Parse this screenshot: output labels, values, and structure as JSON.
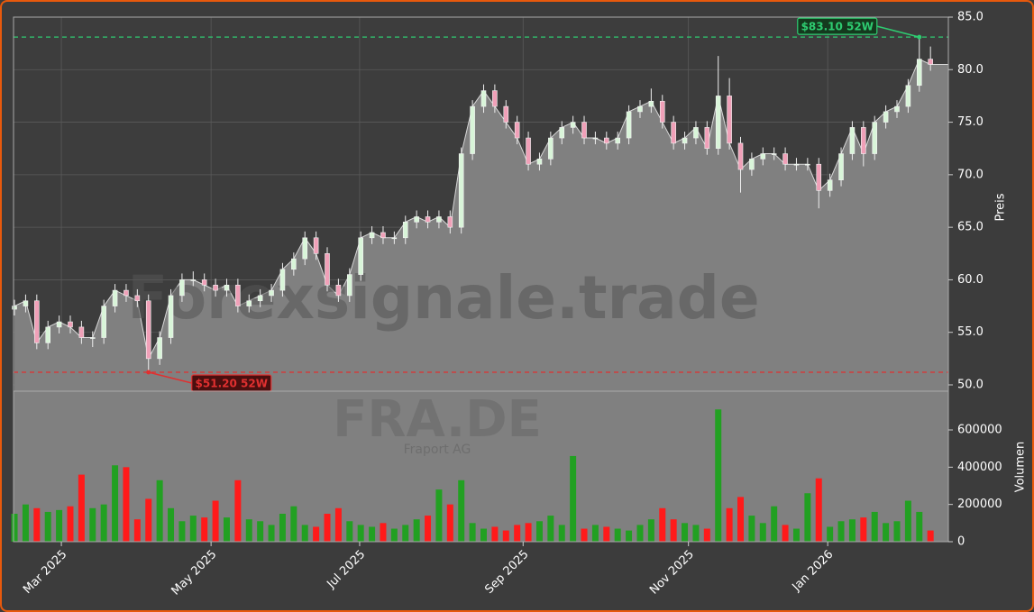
{
  "chart_data": {
    "type": "candlestick",
    "watermark": "Forexsignale.trade",
    "ticker": "FRA.DE",
    "company": "Fraport AG",
    "ylabel": "Preis",
    "y2label": "Volumen",
    "xlim": [
      -0.25,
      250.8
    ],
    "xticks": [
      {
        "value": 12.6,
        "label": "Mar 2025"
      },
      {
        "value": 52.8,
        "label": "May 2025"
      },
      {
        "value": 92.7,
        "label": "Jul 2025"
      },
      {
        "value": 136.6,
        "label": "Sep 2025"
      },
      {
        "value": 181,
        "label": "Nov 2025"
      },
      {
        "value": 218.4,
        "label": "Jan 2026"
      }
    ],
    "ylim": [
      49.4,
      85
    ],
    "yticks": [
      {
        "value": 50,
        "label": "50.0"
      },
      {
        "value": 55,
        "label": "55.0"
      },
      {
        "value": 60,
        "label": "60.0"
      },
      {
        "value": 65,
        "label": "65.0"
      },
      {
        "value": 70,
        "label": "70.0"
      },
      {
        "value": 75,
        "label": "75.0"
      },
      {
        "value": 80,
        "label": "80.0"
      },
      {
        "value": 85,
        "label": "85.0"
      }
    ],
    "y2lim": [
      0,
      808000
    ],
    "y2ticks": [
      0,
      200000,
      400000,
      600000
    ],
    "grid": true,
    "up_color": "#22a022",
    "down_color": "#ff1a1a",
    "area_color": "#808080",
    "annotations": [
      {
        "value": 83.1,
        "label": "$83.10 52W",
        "color": "#2ecc71"
      },
      {
        "value": 51.2,
        "label": "$51.20 52W",
        "color": "#e03030"
      }
    ],
    "x": [
      0,
      3,
      6,
      9,
      12,
      15,
      18,
      21,
      24,
      27,
      30,
      33,
      36,
      39,
      42,
      45,
      48,
      51,
      54,
      57,
      60,
      63,
      66,
      69,
      72,
      75,
      78,
      81,
      84,
      87,
      90,
      93,
      96,
      99,
      102,
      105,
      108,
      111,
      114,
      117,
      120,
      123,
      126,
      129,
      132,
      135,
      138,
      141,
      144,
      147,
      150,
      153,
      156,
      159,
      162,
      165,
      168,
      171,
      174,
      177,
      180,
      183,
      186,
      189,
      192,
      195,
      198,
      201,
      204,
      207,
      210,
      213,
      216,
      219,
      222,
      225,
      228,
      231,
      234,
      237,
      240,
      243,
      246
    ],
    "open": [
      57.2,
      57.5,
      58,
      54,
      55.5,
      56,
      55.5,
      54.5,
      54.5,
      57.5,
      59,
      58.5,
      58,
      52.5,
      54.5,
      58.5,
      60,
      60,
      59.5,
      59,
      59.5,
      57.5,
      58,
      58.5,
      59,
      61,
      62,
      64,
      62.5,
      59.5,
      58.5,
      60.5,
      64,
      64.5,
      64,
      64,
      65.5,
      66,
      65.5,
      66,
      65,
      72,
      76.5,
      78,
      76.5,
      75,
      73.5,
      71,
      71.5,
      73.5,
      74.5,
      75,
      73.5,
      73.5,
      73,
      73.5,
      76,
      76.5,
      77,
      75,
      73,
      73.5,
      74.5,
      72.5,
      77.5,
      73,
      70.5,
      71.5,
      72,
      72,
      71,
      71,
      71,
      68.5,
      69.5,
      72,
      74.5,
      72,
      75,
      76,
      76.5,
      78.5,
      81
    ],
    "high": [
      58.1,
      58.6,
      58.6,
      56.1,
      56.6,
      56.6,
      56.1,
      55.1,
      58.1,
      59.6,
      59.6,
      59.1,
      58.6,
      55.1,
      59.1,
      60.6,
      60.8,
      60.6,
      60.1,
      60.1,
      60.1,
      58.6,
      59.1,
      59.6,
      61.6,
      62.6,
      64.6,
      64.6,
      63.1,
      60.1,
      61.1,
      64.6,
      65.1,
      65.1,
      64.6,
      66.1,
      66.6,
      66.6,
      66.6,
      66.6,
      72.6,
      77.1,
      78.6,
      78.6,
      77.1,
      75.6,
      74.1,
      72.1,
      74.1,
      75.1,
      75.6,
      75.6,
      74.1,
      74.1,
      74.1,
      76.6,
      77.1,
      78.2,
      77.6,
      75.6,
      74.1,
      75.1,
      75.1,
      81.3,
      79.2,
      73.6,
      72.1,
      72.6,
      72.6,
      72.6,
      71.6,
      71.6,
      71.6,
      70.1,
      72.6,
      75.1,
      75.1,
      75.6,
      76.6,
      77.1,
      79.1,
      83.1,
      82.2
    ],
    "low": [
      56.6,
      56.9,
      53.4,
      53.4,
      54.9,
      54.9,
      53.9,
      53.6,
      53.9,
      56.9,
      57.9,
      57.4,
      51.2,
      51.9,
      53.9,
      57.9,
      59.4,
      58.9,
      58.4,
      58.4,
      56.9,
      56.9,
      57.4,
      57.9,
      58.4,
      60.4,
      61.4,
      61.9,
      58.9,
      57.9,
      57.9,
      59.9,
      63.4,
      63.4,
      63.4,
      63.4,
      64.9,
      64.9,
      64.9,
      64.4,
      64.4,
      71.4,
      75.9,
      75.9,
      74.4,
      72.9,
      70.4,
      70.4,
      70.9,
      72.9,
      73.9,
      72.9,
      72.9,
      72.4,
      72.4,
      72.9,
      75.4,
      75.9,
      74.4,
      72.4,
      72.4,
      72.9,
      71.9,
      71.9,
      72.4,
      68.3,
      69.9,
      70.9,
      71.4,
      70.4,
      70.4,
      70.4,
      66.8,
      67.9,
      68.9,
      71.4,
      70.8,
      71.4,
      74.4,
      75.4,
      75.9,
      77.9,
      79.9
    ],
    "close": [
      57.5,
      58,
      54,
      55.5,
      56,
      55.5,
      54.5,
      54.5,
      57.5,
      59,
      58.5,
      58,
      52.5,
      54.5,
      58.5,
      60,
      60,
      59.5,
      59,
      59.5,
      57.5,
      58,
      58.5,
      59,
      61,
      62,
      64,
      62.5,
      59.5,
      58.5,
      60.5,
      64,
      64.5,
      64,
      64,
      65.5,
      66,
      65.5,
      66,
      65,
      72,
      76.5,
      78,
      76.5,
      75,
      73.5,
      71,
      71.5,
      73.5,
      74.5,
      75,
      73.5,
      73.5,
      73,
      73.5,
      76,
      76.5,
      77,
      75,
      73,
      73.5,
      74.5,
      72.5,
      77.5,
      73,
      70.5,
      71.5,
      72,
      72,
      71,
      71,
      71,
      68.5,
      69.5,
      72,
      74.5,
      72,
      75,
      76,
      76.5,
      78.5,
      81,
      80.5
    ],
    "volume": [
      150000,
      200000,
      180000,
      160000,
      170000,
      190000,
      360000,
      180000,
      200000,
      410000,
      400000,
      120000,
      230000,
      330000,
      180000,
      110000,
      140000,
      130000,
      220000,
      130000,
      330000,
      120000,
      110000,
      90000,
      150000,
      190000,
      90000,
      80000,
      150000,
      180000,
      110000,
      90000,
      80000,
      100000,
      70000,
      90000,
      120000,
      140000,
      280000,
      200000,
      330000,
      100000,
      70000,
      80000,
      60000,
      90000,
      100000,
      110000,
      140000,
      90000,
      460000,
      70000,
      90000,
      80000,
      70000,
      60000,
      90000,
      120000,
      180000,
      120000,
      100000,
      90000,
      70000,
      710000,
      180000,
      240000,
      140000,
      100000,
      190000,
      90000,
      70000,
      260000,
      340000,
      80000,
      110000,
      120000,
      130000,
      160000,
      100000,
      110000,
      220000,
      160000,
      60000
    ]
  }
}
